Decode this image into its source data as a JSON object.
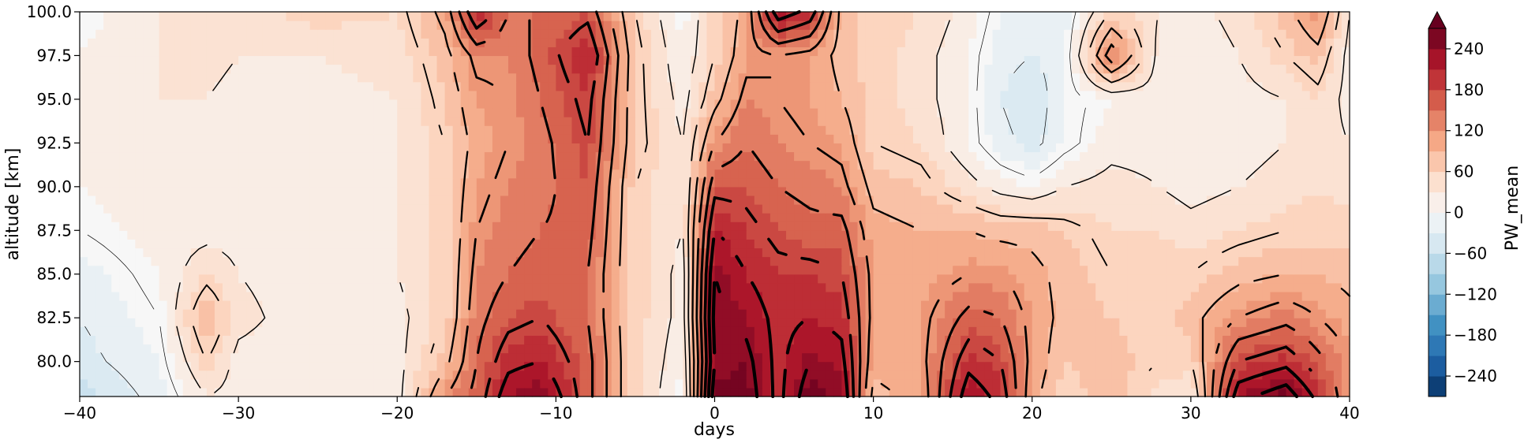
{
  "chart_data": {
    "type": "heatmap",
    "xlabel": "days",
    "ylabel": "altitude [km]",
    "colorbar_label": "PW_mean",
    "xlim": [
      -40,
      40
    ],
    "ylim": [
      78,
      100
    ],
    "x_ticks": [
      -40,
      -30,
      -20,
      -10,
      0,
      10,
      20,
      30,
      40
    ],
    "x_tick_labels": [
      "−40",
      "−30",
      "−20",
      "−10",
      "0",
      "10",
      "20",
      "30",
      "40"
    ],
    "y_ticks": [
      80,
      82.5,
      85,
      87.5,
      90,
      92.5,
      95,
      97.5,
      100
    ],
    "y_tick_labels": [
      "80.0",
      "82.5",
      "85.0",
      "87.5",
      "90.0",
      "92.5",
      "95.0",
      "97.5",
      "100.0"
    ],
    "colorbar_ticks": [
      -240,
      -180,
      -120,
      -60,
      0,
      60,
      120,
      180,
      240
    ],
    "colorbar_tick_labels": [
      "−240",
      "−180",
      "−120",
      "−60",
      "0",
      "60",
      "120",
      "180",
      "240"
    ],
    "color_range": [
      -270,
      270
    ],
    "colormap": "RdBu_r",
    "colorbar_extend": "max",
    "contour_overlay": true,
    "grid": false,
    "x_samples": [
      -40,
      -35,
      -32,
      -30,
      -25,
      -20,
      -17,
      -15,
      -13,
      -11,
      -8,
      -5,
      -2,
      0,
      2,
      4,
      6,
      8,
      10,
      13,
      16,
      18,
      20,
      22,
      25,
      28,
      30,
      33,
      36,
      38,
      40
    ],
    "y_samples": [
      78,
      80,
      82.5,
      85,
      87.5,
      90,
      92.5,
      95,
      97.5,
      100
    ],
    "values": [
      [
        -60,
        -20,
        30,
        20,
        10,
        20,
        120,
        160,
        230,
        250,
        160,
        60,
        0,
        260,
        260,
        200,
        260,
        240,
        80,
        100,
        230,
        200,
        100,
        60,
        80,
        40,
        30,
        230,
        260,
        200,
        120
      ],
      [
        -40,
        -10,
        60,
        20,
        10,
        20,
        80,
        150,
        200,
        210,
        160,
        60,
        10,
        240,
        250,
        200,
        240,
        220,
        100,
        110,
        200,
        180,
        110,
        70,
        80,
        60,
        60,
        180,
        200,
        160,
        120
      ],
      [
        -30,
        0,
        90,
        40,
        10,
        20,
        60,
        140,
        170,
        180,
        150,
        60,
        20,
        250,
        230,
        200,
        210,
        200,
        110,
        110,
        160,
        150,
        110,
        80,
        70,
        60,
        80,
        120,
        140,
        120,
        100
      ],
      [
        -20,
        10,
        50,
        30,
        10,
        30,
        60,
        130,
        150,
        160,
        150,
        60,
        20,
        240,
        210,
        190,
        190,
        180,
        110,
        100,
        120,
        120,
        100,
        80,
        60,
        60,
        60,
        80,
        90,
        90,
        80
      ],
      [
        0,
        20,
        20,
        20,
        20,
        30,
        60,
        120,
        140,
        150,
        160,
        60,
        30,
        210,
        190,
        170,
        160,
        160,
        100,
        90,
        90,
        80,
        80,
        70,
        50,
        50,
        40,
        50,
        60,
        60,
        60
      ],
      [
        10,
        20,
        20,
        20,
        20,
        30,
        60,
        110,
        130,
        140,
        170,
        60,
        30,
        170,
        170,
        150,
        140,
        130,
        80,
        70,
        40,
        20,
        10,
        30,
        40,
        30,
        20,
        30,
        40,
        50,
        40
      ],
      [
        20,
        20,
        20,
        20,
        20,
        30,
        60,
        100,
        120,
        140,
        180,
        70,
        30,
        120,
        150,
        130,
        120,
        110,
        60,
        50,
        10,
        -20,
        -40,
        -10,
        20,
        20,
        20,
        20,
        30,
        40,
        30
      ],
      [
        20,
        30,
        30,
        20,
        20,
        30,
        70,
        110,
        120,
        150,
        190,
        70,
        20,
        80,
        130,
        120,
        110,
        90,
        60,
        40,
        10,
        -30,
        -50,
        -10,
        10,
        20,
        20,
        20,
        30,
        50,
        20
      ],
      [
        10,
        30,
        40,
        30,
        30,
        40,
        80,
        130,
        130,
        160,
        210,
        70,
        10,
        60,
        110,
        120,
        110,
        80,
        60,
        40,
        10,
        -20,
        -30,
        -20,
        140,
        20,
        10,
        30,
        60,
        80,
        20
      ],
      [
        0,
        30,
        50,
        40,
        60,
        50,
        100,
        210,
        150,
        150,
        170,
        60,
        0,
        60,
        100,
        230,
        200,
        80,
        60,
        50,
        20,
        -10,
        -30,
        -20,
        60,
        30,
        20,
        40,
        80,
        120,
        30
      ]
    ]
  }
}
